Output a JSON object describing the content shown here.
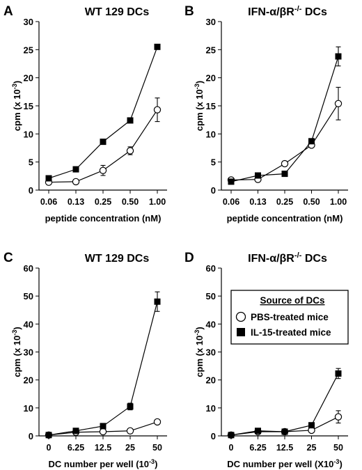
{
  "chart_data": [
    {
      "type": "line",
      "panel_letter": "A",
      "title": "WT 129 DCs",
      "xlabel": "peptide concentration (nM)",
      "ylabel": "cpm (x 10-3)",
      "categories": [
        "0.06",
        "0.13",
        "0.25",
        "0.50",
        "1.00"
      ],
      "ylim": [
        0,
        30
      ],
      "yticks": [
        "0",
        "5",
        "10",
        "15",
        "20",
        "25",
        "30"
      ],
      "series": [
        {
          "name": "PBS-treated mice",
          "marker": "open-circle",
          "values": [
            1.4,
            1.5,
            3.5,
            7.0,
            14.3
          ],
          "errors": [
            0.2,
            0.2,
            0.9,
            0.7,
            2.1
          ]
        },
        {
          "name": "IL-15-treated mice",
          "marker": "filled-square",
          "values": [
            2.1,
            3.7,
            8.6,
            12.4,
            25.5
          ],
          "errors": [
            0.3,
            0.4,
            0.3,
            0.4,
            0.3
          ]
        }
      ]
    },
    {
      "type": "line",
      "panel_letter": "B",
      "title": "IFN-α/βR-/- DCs",
      "xlabel": "peptide concentration (nM)",
      "ylabel": "cpm (x 10-3)",
      "categories": [
        "0.06",
        "0.13",
        "0.25",
        "0.50",
        "1.00"
      ],
      "ylim": [
        0,
        30
      ],
      "yticks": [
        "0",
        "5",
        "10",
        "15",
        "20",
        "25",
        "30"
      ],
      "series": [
        {
          "name": "PBS-treated mice",
          "marker": "open-circle",
          "values": [
            1.8,
            1.9,
            4.7,
            8.0,
            15.4
          ],
          "errors": [
            0.2,
            0.2,
            0.4,
            0.3,
            2.9
          ]
        },
        {
          "name": "IL-15-treated mice",
          "marker": "filled-square",
          "values": [
            1.5,
            2.6,
            2.9,
            8.7,
            23.8
          ],
          "errors": [
            0.2,
            0.3,
            0.3,
            0.4,
            1.7
          ]
        }
      ]
    },
    {
      "type": "line",
      "panel_letter": "C",
      "title": "WT 129 DCs",
      "xlabel": "DC number per well (10-3)",
      "ylabel": "cpm (x 10-3)",
      "categories": [
        "0",
        "6.25",
        "12.5",
        "25",
        "50"
      ],
      "ylim": [
        0,
        60
      ],
      "yticks": [
        "0",
        "10",
        "20",
        "30",
        "40",
        "50",
        "60"
      ],
      "series": [
        {
          "name": "PBS-treated mice",
          "marker": "open-circle",
          "values": [
            0.3,
            1.3,
            1.5,
            1.8,
            5.0
          ],
          "errors": [
            0.2,
            0.3,
            0.3,
            0.3,
            0.5
          ]
        },
        {
          "name": "IL-15-treated mice",
          "marker": "filled-square",
          "values": [
            0.3,
            1.8,
            3.5,
            10.5,
            48.0
          ],
          "errors": [
            0.2,
            0.3,
            0.4,
            1.2,
            3.5
          ]
        }
      ]
    },
    {
      "type": "line",
      "panel_letter": "D",
      "title": "IFN-α/βR-/- DCs",
      "xlabel": "DC number per well (X10-3)",
      "ylabel": "cpm (x 10-3)",
      "categories": [
        "0",
        "6.25",
        "12.5",
        "25",
        "50"
      ],
      "ylim": [
        0,
        60
      ],
      "yticks": [
        "0",
        "10",
        "20",
        "30",
        "40",
        "50",
        "60"
      ],
      "legend": {
        "title": "Source of DCs",
        "entries": [
          "PBS-treated mice",
          "IL-15-treated mice"
        ]
      },
      "series": [
        {
          "name": "PBS-treated mice",
          "marker": "open-circle",
          "values": [
            0.3,
            1.5,
            1.5,
            2.0,
            6.8
          ],
          "errors": [
            0.2,
            0.3,
            0.3,
            0.4,
            2.2
          ]
        },
        {
          "name": "IL-15-treated mice",
          "marker": "filled-square",
          "values": [
            0.3,
            1.8,
            1.5,
            3.8,
            22.3
          ],
          "errors": [
            0.2,
            0.3,
            0.3,
            0.6,
            1.8
          ]
        }
      ]
    }
  ]
}
